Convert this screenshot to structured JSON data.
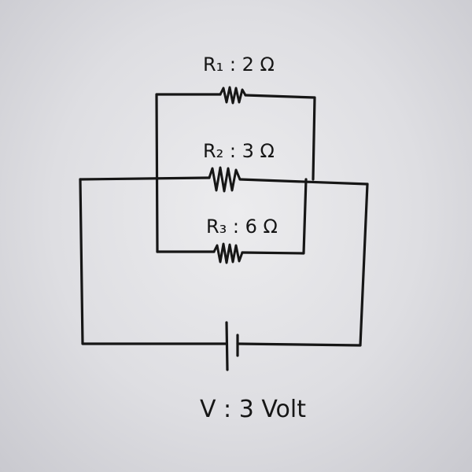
{
  "diagram": {
    "resistors": [
      {
        "id": "r1",
        "label": "R₁ : 2 Ω",
        "resistance_ohm": 2
      },
      {
        "id": "r2",
        "label": "R₂ : 3 Ω",
        "resistance_ohm": 3
      },
      {
        "id": "r3",
        "label": "R₃ : 6 Ω",
        "resistance_ohm": 6
      }
    ],
    "battery": {
      "label": "V : 3 Volt",
      "voltage_volt": 3
    },
    "colors": {
      "ink": "#161616",
      "paper": "#e4e4e8"
    }
  }
}
